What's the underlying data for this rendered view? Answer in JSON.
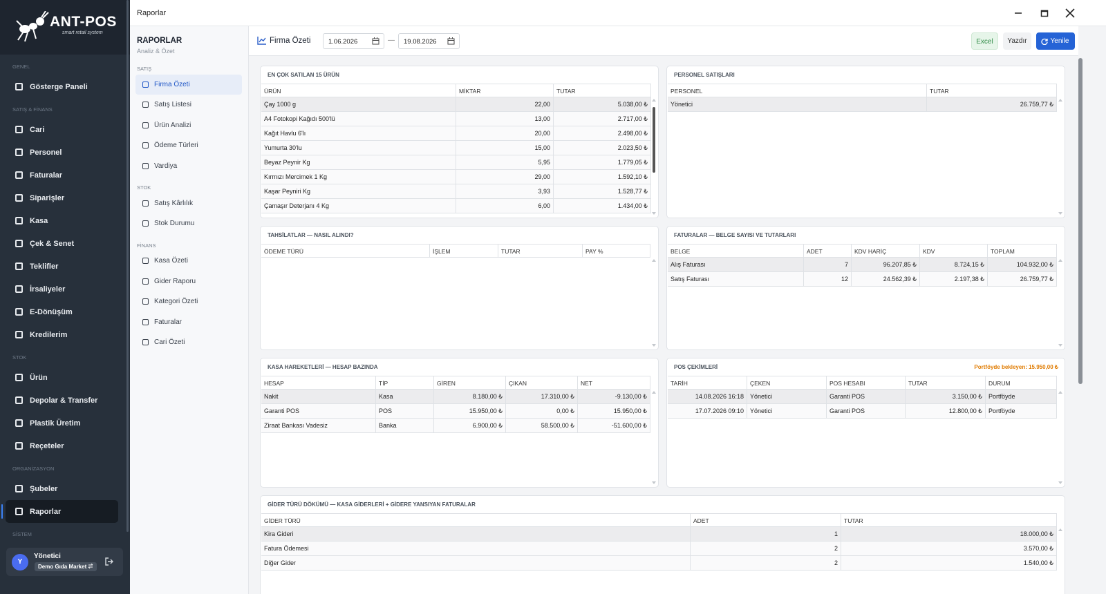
{
  "app": {
    "brand": "ANT-POS",
    "tagline": "smart retail system"
  },
  "sidebar": {
    "sections": [
      {
        "title": "GENEL",
        "items": [
          {
            "label": "Gösterge Paneli"
          }
        ]
      },
      {
        "title": "SATIŞ & FİNANS",
        "items": [
          {
            "label": "Cari"
          },
          {
            "label": "Personel"
          },
          {
            "label": "Faturalar"
          },
          {
            "label": "Siparişler"
          },
          {
            "label": "Kasa"
          },
          {
            "label": "Çek & Senet"
          },
          {
            "label": "Teklifler"
          },
          {
            "label": "İrsaliyeler"
          },
          {
            "label": "E-Dönüşüm"
          },
          {
            "label": "Kredilerim"
          }
        ]
      },
      {
        "title": "STOK",
        "items": [
          {
            "label": "Ürün"
          },
          {
            "label": "Depolar & Transfer"
          },
          {
            "label": "Plastik Üretim"
          },
          {
            "label": "Reçeteler"
          }
        ]
      },
      {
        "title": "ORGANİZASYON",
        "items": [
          {
            "label": "Şubeler"
          },
          {
            "label": "Raporlar",
            "active": true
          }
        ]
      },
      {
        "title": "SİSTEM",
        "items": []
      }
    ]
  },
  "user": {
    "initial": "Y",
    "name": "Yönetici",
    "company": "Demo Gıda Market"
  },
  "window": {
    "title": "Raporlar"
  },
  "reports_menu": {
    "title": "RAPORLAR",
    "subtitle": "Analiz & Özet",
    "sections": [
      {
        "title": "SATIŞ",
        "items": [
          {
            "label": "Firma Özeti",
            "active": true
          },
          {
            "label": "Satış Listesi"
          },
          {
            "label": "Ürün Analizi"
          },
          {
            "label": "Ödeme Türleri"
          },
          {
            "label": "Vardiya"
          }
        ]
      },
      {
        "title": "STOK",
        "items": [
          {
            "label": "Satış Kârlılık"
          },
          {
            "label": "Stok Durumu"
          }
        ]
      },
      {
        "title": "FİNANS",
        "items": [
          {
            "label": "Kasa Özeti"
          },
          {
            "label": "Gider Raporu"
          },
          {
            "label": "Kategori Özeti"
          },
          {
            "label": "Faturalar"
          },
          {
            "label": "Cari Özeti"
          }
        ]
      }
    ]
  },
  "toolbar": {
    "title": "Firma Özeti",
    "date_from": "1.06.2026",
    "date_sep": "—",
    "date_to": "19.08.2026",
    "buttons": [
      "Excel",
      "Yazdır",
      "Yenile"
    ]
  },
  "panels": [
    {
      "title": "EN ÇOK SATILAN 15 ÜRÜN",
      "columns": [
        "ÜRÜN",
        "MİKTAR",
        "TUTAR"
      ],
      "rows": [
        [
          "Çay 1000 g",
          "22,00",
          "5.038,00 ₺"
        ],
        [
          "A4 Fotokopi Kağıdı 500'lü",
          "13,00",
          "2.717,00 ₺"
        ],
        [
          "Kağıt Havlu 6'lı",
          "20,00",
          "2.498,00 ₺"
        ],
        [
          "Yumurta 30'lu",
          "15,00",
          "2.023,50 ₺"
        ],
        [
          "Beyaz Peynir Kg",
          "5,95",
          "1.779,05 ₺"
        ],
        [
          "Kırmızı Mercimek 1 Kg",
          "29,00",
          "1.592,10 ₺"
        ],
        [
          "Kaşar Peyniri Kg",
          "3,93",
          "1.528,77 ₺"
        ],
        [
          "Çamaşır Deterjanı 4 Kg",
          "6,00",
          "1.434,00 ₺"
        ]
      ]
    },
    {
      "title": "PERSONEL SATIŞLARI",
      "columns": [
        "PERSONEL",
        "TUTAR"
      ],
      "rows": [
        [
          "Yönetici",
          "26.759,77 ₺"
        ]
      ]
    },
    {
      "title": "TAHSİLATLAR — NASIL ALINDI?",
      "columns": [
        "ÖDEME TÜRÜ",
        "İŞLEM",
        "TUTAR",
        "PAY %"
      ],
      "rows": []
    },
    {
      "title": "FATURALAR — BELGE SAYISI VE TUTARLARI",
      "columns": [
        "BELGE",
        "ADET",
        "KDV HARİÇ",
        "KDV",
        "TOPLAM"
      ],
      "rows": [
        [
          "Alış Faturası",
          "7",
          "96.207,85 ₺",
          "8.724,15 ₺",
          "104.932,00 ₺"
        ],
        [
          "Satış Faturası",
          "12",
          "24.562,39 ₺",
          "2.197,38 ₺",
          "26.759,77 ₺"
        ]
      ]
    },
    {
      "title": "KASA HAREKETLERİ — HESAP BAZINDA",
      "columns": [
        "HESAP",
        "TİP",
        "GİREN",
        "ÇIKAN",
        "NET"
      ],
      "rows": [
        [
          "Nakit",
          "Kasa",
          "8.180,00 ₺",
          "17.310,00 ₺",
          "-9.130,00 ₺"
        ],
        [
          "Garanti POS",
          "POS",
          "15.950,00 ₺",
          "0,00 ₺",
          "15.950,00 ₺"
        ],
        [
          "Ziraat Bankası Vadesiz",
          "Banka",
          "6.900,00 ₺",
          "58.500,00 ₺",
          "-51.600,00 ₺"
        ]
      ]
    },
    {
      "title": "POS ÇEKİMLERİ",
      "note": "Portföyde bekleyen: 15.950,00 ₺",
      "columns": [
        "TARİH",
        "ÇEKEN",
        "POS HESABI",
        "TUTAR",
        "DURUM"
      ],
      "rows": [
        [
          "14.08.2026 16:18",
          "Yönetici",
          "Garanti POS",
          "3.150,00 ₺",
          "Portföyde"
        ],
        [
          "17.07.2026 09:10",
          "Yönetici",
          "Garanti POS",
          "12.800,00 ₺",
          "Portföyde"
        ]
      ]
    },
    {
      "title": "GİDER TÜRÜ DÖKÜMÜ — KASA GİDERLERİ + GİDERE YANSIYAN FATURALAR",
      "columns": [
        "GİDER TÜRÜ",
        "ADET",
        "TUTAR"
      ],
      "rows": [
        [
          "Kira Gideri",
          "1",
          "18.000,00 ₺"
        ],
        [
          "Fatura Ödemesi",
          "2",
          "3.570,00 ₺"
        ],
        [
          "Diğer Gider",
          "2",
          "1.540,00 ₺"
        ]
      ]
    }
  ]
}
